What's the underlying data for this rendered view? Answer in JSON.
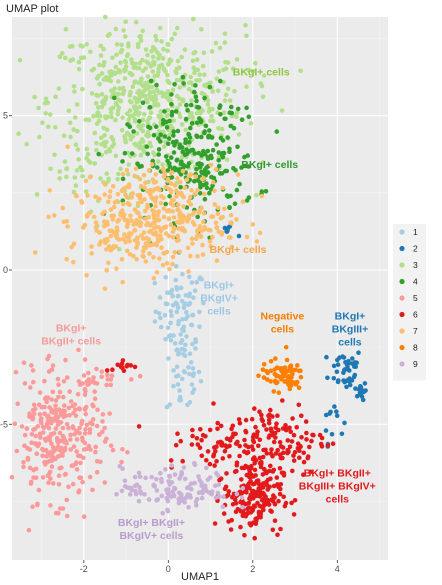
{
  "title": "UMAP plot",
  "chart_data": {
    "type": "scatter",
    "title": "UMAP plot",
    "xlabel": "UMAP1",
    "ylabel": "",
    "xlim": [
      -3.7,
      5.2
    ],
    "ylim": [
      -9.4,
      8.2
    ],
    "xticks": [
      -2,
      0,
      2,
      4
    ],
    "yticks": [
      -5,
      0,
      5
    ],
    "grid": true,
    "legend_position": "right",
    "series": [
      {
        "name": "1",
        "color": "#A6CEE3",
        "clusters": [
          {
            "cx": 0.3,
            "cy": -1.3,
            "sx": 0.3,
            "sy": 0.7,
            "n": 70
          },
          {
            "cx": 0.35,
            "cy": -3.1,
            "sx": 0.2,
            "sy": 0.9,
            "n": 50
          }
        ]
      },
      {
        "name": "2",
        "color": "#1F78B4",
        "clusters": [
          {
            "cx": 4.2,
            "cy": -3.2,
            "sx": 0.2,
            "sy": 0.35,
            "n": 40
          },
          {
            "cx": 4.55,
            "cy": -3.9,
            "sx": 0.07,
            "sy": 0.15,
            "n": 20
          },
          {
            "cx": 3.9,
            "cy": -4.8,
            "sx": 0.12,
            "sy": 0.4,
            "n": 12
          },
          {
            "cx": 1.4,
            "cy": 1.3,
            "sx": 0.1,
            "sy": 0.1,
            "n": 8
          }
        ]
      },
      {
        "name": "3",
        "color": "#B2DF8A",
        "clusters": [
          {
            "cx": -0.5,
            "cy": 5.5,
            "sx": 1.15,
            "sy": 1.2,
            "n": 600
          },
          {
            "cx": -1.6,
            "cy": 3.0,
            "sx": 0.5,
            "sy": 0.5,
            "n": 30
          }
        ]
      },
      {
        "name": "4",
        "color": "#33A02C",
        "clusters": [
          {
            "cx": 0.6,
            "cy": 3.4,
            "sx": 0.75,
            "sy": 0.9,
            "n": 240
          },
          {
            "cx": 0.6,
            "cy": 5.5,
            "sx": 0.5,
            "sy": 0.5,
            "n": 30
          }
        ]
      },
      {
        "name": "5",
        "color": "#FB9A99",
        "clusters": [
          {
            "cx": -2.6,
            "cy": -5.5,
            "sx": 0.55,
            "sy": 1.0,
            "n": 300
          },
          {
            "cx": -1.8,
            "cy": -3.5,
            "sx": 0.6,
            "sy": 0.15,
            "n": 30
          }
        ]
      },
      {
        "name": "6",
        "color": "#E31A1C",
        "clusters": [
          {
            "cx": 2.0,
            "cy": -7.3,
            "sx": 0.35,
            "sy": 0.6,
            "n": 200
          },
          {
            "cx": 2.4,
            "cy": -5.5,
            "sx": 0.7,
            "sy": 0.6,
            "n": 150
          },
          {
            "cx": 1.0,
            "cy": -5.7,
            "sx": 0.5,
            "sy": 0.3,
            "n": 30
          },
          {
            "cx": -1.1,
            "cy": -3.1,
            "sx": 0.2,
            "sy": 0.1,
            "n": 12
          }
        ]
      },
      {
        "name": "7",
        "color": "#FDBF6F",
        "clusters": [
          {
            "cx": -0.5,
            "cy": 1.5,
            "sx": 0.95,
            "sy": 0.7,
            "n": 350
          },
          {
            "cx": -0.1,
            "cy": 2.8,
            "sx": 0.7,
            "sy": 0.4,
            "n": 60
          }
        ]
      },
      {
        "name": "8",
        "color": "#FF7F00",
        "clusters": [
          {
            "cx": 2.7,
            "cy": -3.4,
            "sx": 0.25,
            "sy": 0.25,
            "n": 70
          }
        ]
      },
      {
        "name": "9",
        "color": "#CAB2D6",
        "clusters": [
          {
            "cx": 0.2,
            "cy": -7.1,
            "sx": 0.65,
            "sy": 0.35,
            "n": 130
          }
        ]
      }
    ],
    "annotations": [
      {
        "lines": [
          "BKgI+ cells"
        ],
        "x": 2.2,
        "y": 6.3,
        "color": "#8DC63F"
      },
      {
        "lines": [
          "BKgI+ cells"
        ],
        "x": 2.4,
        "y": 3.3,
        "color": "#2E9A2E"
      },
      {
        "lines": [
          "BKgI+ cells"
        ],
        "x": 1.65,
        "y": 0.55,
        "color": "#F4A646"
      },
      {
        "lines": [
          "BKgI+",
          "BKgIV+",
          "cells"
        ],
        "x": 1.2,
        "y": -0.6,
        "color": "#9CC7E4"
      },
      {
        "lines": [
          "Negative",
          "cells"
        ],
        "x": 2.7,
        "y": -1.6,
        "color": "#F57C00"
      },
      {
        "lines": [
          "BKgI+",
          "BKgIII+",
          "cells"
        ],
        "x": 4.3,
        "y": -1.6,
        "color": "#1F78B4"
      },
      {
        "lines": [
          "BKgI+",
          "BKgII+ cells"
        ],
        "x": -2.3,
        "y": -2.0,
        "color": "#F59B9B"
      },
      {
        "lines": [
          "BKgI+ BKgII+",
          "BKgIII+ BKgIV+",
          "cells"
        ],
        "x": 4.0,
        "y": -6.7,
        "color": "#E31A1C"
      },
      {
        "lines": [
          "BKgI+ BKgII+",
          "BKgIV+ cells"
        ],
        "x": -0.4,
        "y": -8.3,
        "color": "#B89CCB"
      }
    ]
  }
}
